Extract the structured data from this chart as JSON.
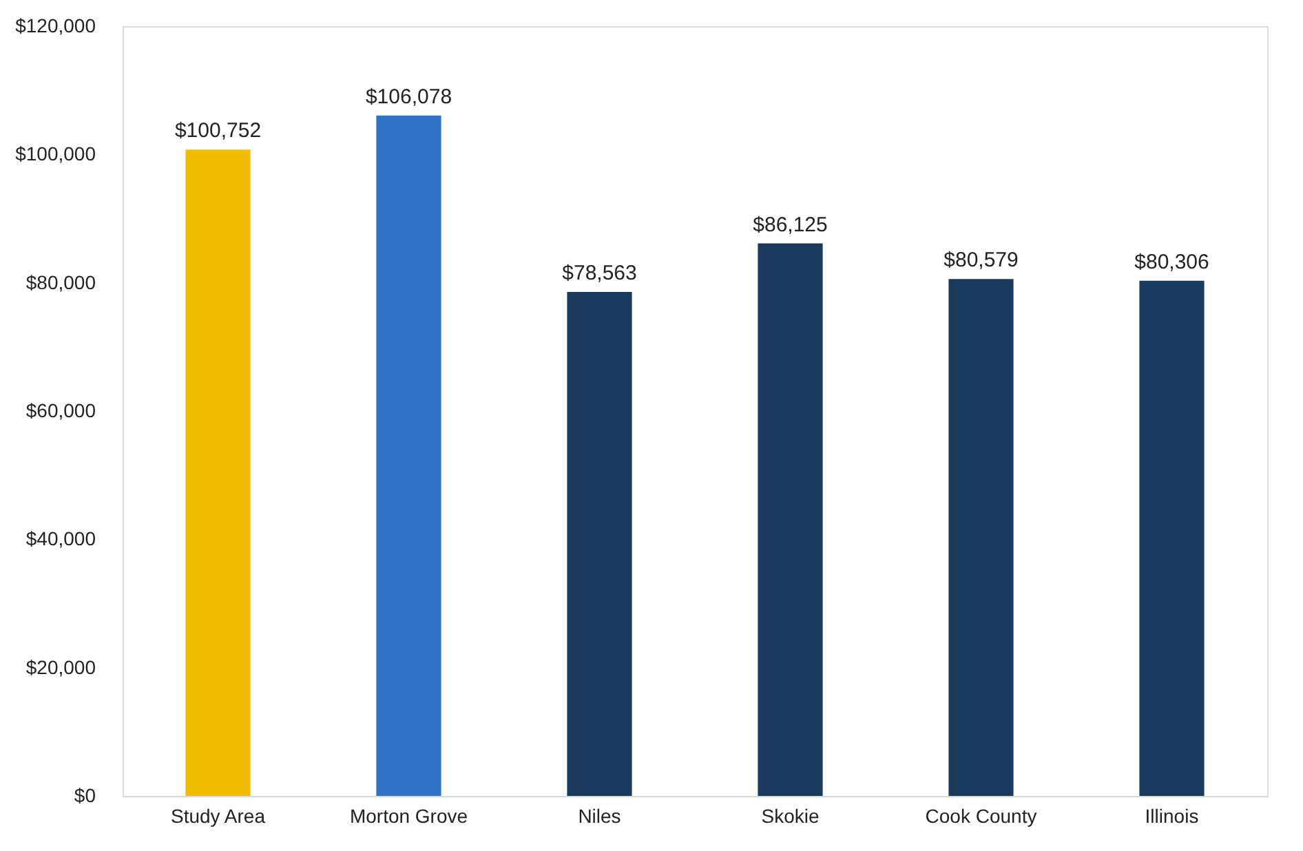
{
  "chart_data": {
    "type": "bar",
    "categories": [
      "Study Area",
      "Morton Grove",
      "Niles",
      "Skokie",
      "Cook County",
      "Illinois"
    ],
    "values": [
      100752,
      106078,
      78563,
      86125,
      80579,
      80306
    ],
    "colors": [
      "#f2bc00",
      "#3072c4",
      "#1a3a5c",
      "#1a3a5c",
      "#1a3a5c",
      "#1a3a5c"
    ],
    "value_labels": [
      "$100,752",
      "$106,078",
      "$78,563",
      "$86,125",
      "$80,579",
      "$80,306"
    ],
    "ylim": [
      0,
      120000
    ],
    "yticks": [
      {
        "value": 0,
        "label": "$0"
      },
      {
        "value": 20000,
        "label": "$20,000"
      },
      {
        "value": 40000,
        "label": "$40,000"
      },
      {
        "value": 60000,
        "label": "$60,000"
      },
      {
        "value": 80000,
        "label": "$80,000"
      },
      {
        "value": 100000,
        "label": "$100,000"
      },
      {
        "value": 120000,
        "label": "$120,000"
      }
    ],
    "grid": false
  }
}
